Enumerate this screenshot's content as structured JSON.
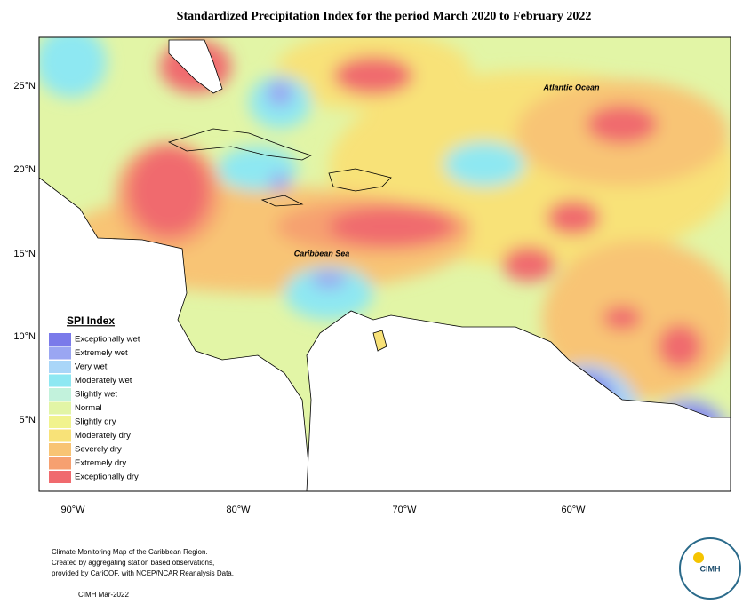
{
  "title": "Standardized Precipitation Index for the period March 2020 to February 2022",
  "lat_labels": [
    "25°N",
    "20°N",
    "15°N",
    "10°N",
    "5°N"
  ],
  "lon_labels": [
    "90°W",
    "80°W",
    "70°W",
    "60°W"
  ],
  "places": [
    "Atlantic Ocean",
    "Caribbean Sea"
  ],
  "legend": {
    "title": "SPI Index",
    "items": [
      {
        "name": "Exceptionally wet",
        "color": "#7a7aea"
      },
      {
        "name": "Extremely wet",
        "color": "#9aa6f2"
      },
      {
        "name": "Very wet",
        "color": "#a9d6f8"
      },
      {
        "name": "Moderately wet",
        "color": "#8ee8f2"
      },
      {
        "name": "Slightly wet",
        "color": "#c2f2dc"
      },
      {
        "name": "Normal",
        "color": "#e2f5a6"
      },
      {
        "name": "Slightly dry",
        "color": "#f1f38e"
      },
      {
        "name": "Moderately dry",
        "color": "#f8e278"
      },
      {
        "name": "Severely dry",
        "color": "#f8c474"
      },
      {
        "name": "Extremely dry",
        "color": "#f6a070"
      },
      {
        "name": "Exceptionally dry",
        "color": "#f06a6e"
      }
    ]
  },
  "footer": {
    "lines": [
      "Climate Monitoring Map of the Caribbean Region.",
      "Created by aggregating station based observations,",
      "provided by CariCOF, with NCEP/NCAR Reanalysis Data."
    ],
    "date": "CIMH Mar-2022"
  },
  "logo": "CIMH"
}
